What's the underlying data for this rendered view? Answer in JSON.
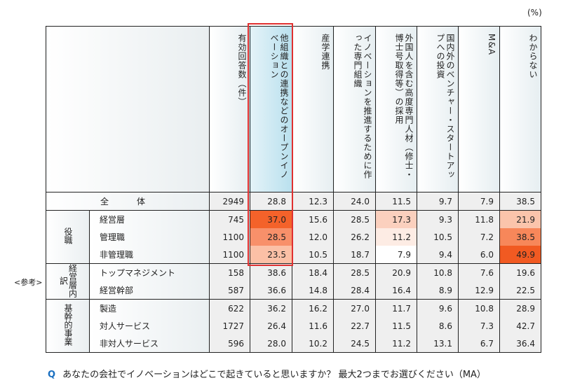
{
  "unit_label": "(%)",
  "reference_label": "<参考>",
  "question": {
    "marker": "Q",
    "text": "あなたの会社でイノベーションはどこで起きていると思いますか？ 最大2つまでお選びください（MA）"
  },
  "columns": [
    "有効回答数（件）",
    "他組織との連携などのオープンイノベーション",
    "産学連携",
    "イノベーションを推進するために作った専門組織",
    "外国人を含む高度専門人材（修士・博士号取得等）の採用",
    "国内外のベンチャー・スタートアップへの投資",
    "M&A",
    "わからない"
  ],
  "highlighted_column": "他組織との連携などのオープンイノベーション",
  "total_row": {
    "label": "全　体",
    "values": [
      "2949",
      "28.8",
      "12.3",
      "24.0",
      "11.5",
      "9.7",
      "7.9",
      "38.5"
    ]
  },
  "groups": [
    {
      "label": "役職",
      "rows": [
        {
          "label": "経営層",
          "values": [
            "745",
            "37.0",
            "15.6",
            "28.5",
            "17.3",
            "9.3",
            "11.8",
            "21.9"
          ],
          "heat": [
            null,
            "#f4622a",
            null,
            null,
            "#fbd0be",
            null,
            null,
            "#fbc4ab"
          ]
        },
        {
          "label": "管理職",
          "values": [
            "1100",
            "28.5",
            "12.0",
            "26.2",
            "11.2",
            "10.5",
            "7.2",
            "38.5"
          ],
          "heat": [
            null,
            "#f8906a",
            null,
            null,
            "#fdece4",
            null,
            null,
            "#f7875a"
          ]
        },
        {
          "label": "非管理職",
          "values": [
            "1100",
            "23.5",
            "10.5",
            "18.7",
            "7.9",
            "9.4",
            "6.0",
            "49.9"
          ],
          "heat": [
            null,
            "#fbc0a6",
            null,
            null,
            "#ffffff",
            null,
            null,
            "#f15a22"
          ]
        }
      ]
    },
    {
      "label": "経営層内訳",
      "rows": [
        {
          "label": "トップマネジメント",
          "values": [
            "158",
            "38.6",
            "18.4",
            "28.5",
            "20.9",
            "10.8",
            "7.6",
            "19.6"
          ]
        },
        {
          "label": "経営幹部",
          "values": [
            "587",
            "36.6",
            "14.8",
            "28.4",
            "16.4",
            "8.9",
            "12.9",
            "22.5"
          ]
        }
      ]
    },
    {
      "label": "基幹的事業",
      "rows": [
        {
          "label": "製造",
          "values": [
            "622",
            "36.2",
            "16.2",
            "27.0",
            "11.7",
            "9.6",
            "10.8",
            "28.9"
          ]
        },
        {
          "label": "対人サービス",
          "values": [
            "1727",
            "26.4",
            "11.6",
            "22.7",
            "11.5",
            "8.6",
            "7.3",
            "42.7"
          ]
        },
        {
          "label": "非対人サービス",
          "values": [
            "596",
            "28.0",
            "10.2",
            "24.5",
            "11.2",
            "13.1",
            "6.7",
            "36.4"
          ]
        }
      ]
    }
  ],
  "colors": {
    "highlight_box": "#e03030",
    "question_marker": "#1a6fc0",
    "header_highlight": "#b9e0ee"
  }
}
